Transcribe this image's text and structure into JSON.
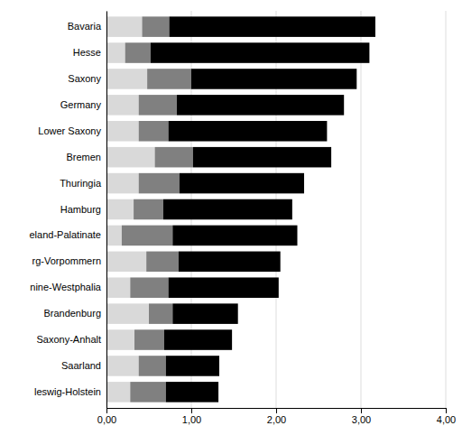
{
  "chart_data": {
    "type": "bar",
    "orientation": "horizontal",
    "stacked": true,
    "grid": true,
    "categories": [
      "Bavaria",
      "Hesse",
      "Saxony",
      "Germany",
      "Lower Saxony",
      "Bremen",
      "Thuringia",
      "Hamburg",
      "eland-Palatinate",
      "rg-Vorpommern",
      "nine-Westphalia",
      "Brandenburg",
      "Saxony-Anhalt",
      "Saarland",
      "leswig-Holstein"
    ],
    "series": [
      {
        "color": "#d9d9d9",
        "values": [
          0.42,
          0.22,
          0.48,
          0.38,
          0.38,
          0.57,
          0.38,
          0.32,
          0.18,
          0.47,
          0.28,
          0.5,
          0.33,
          0.38,
          0.28
        ]
      },
      {
        "color": "#808080",
        "values": [
          0.32,
          0.3,
          0.52,
          0.45,
          0.35,
          0.45,
          0.48,
          0.35,
          0.6,
          0.38,
          0.45,
          0.28,
          0.35,
          0.32,
          0.42
        ]
      },
      {
        "color": "#000000",
        "values": [
          2.43,
          2.58,
          1.95,
          1.97,
          1.87,
          1.63,
          1.47,
          1.52,
          1.47,
          1.2,
          1.3,
          0.77,
          0.8,
          0.63,
          0.62
        ]
      }
    ],
    "xlim": [
      0,
      4.0
    ],
    "xticks": [
      {
        "value": 0.0,
        "label": "0,00"
      },
      {
        "value": 1.0,
        "label": "1,00"
      },
      {
        "value": 2.0,
        "label": "2,00"
      },
      {
        "value": 3.0,
        "label": "3,00"
      },
      {
        "value": 4.0,
        "label": "4,00"
      }
    ]
  }
}
